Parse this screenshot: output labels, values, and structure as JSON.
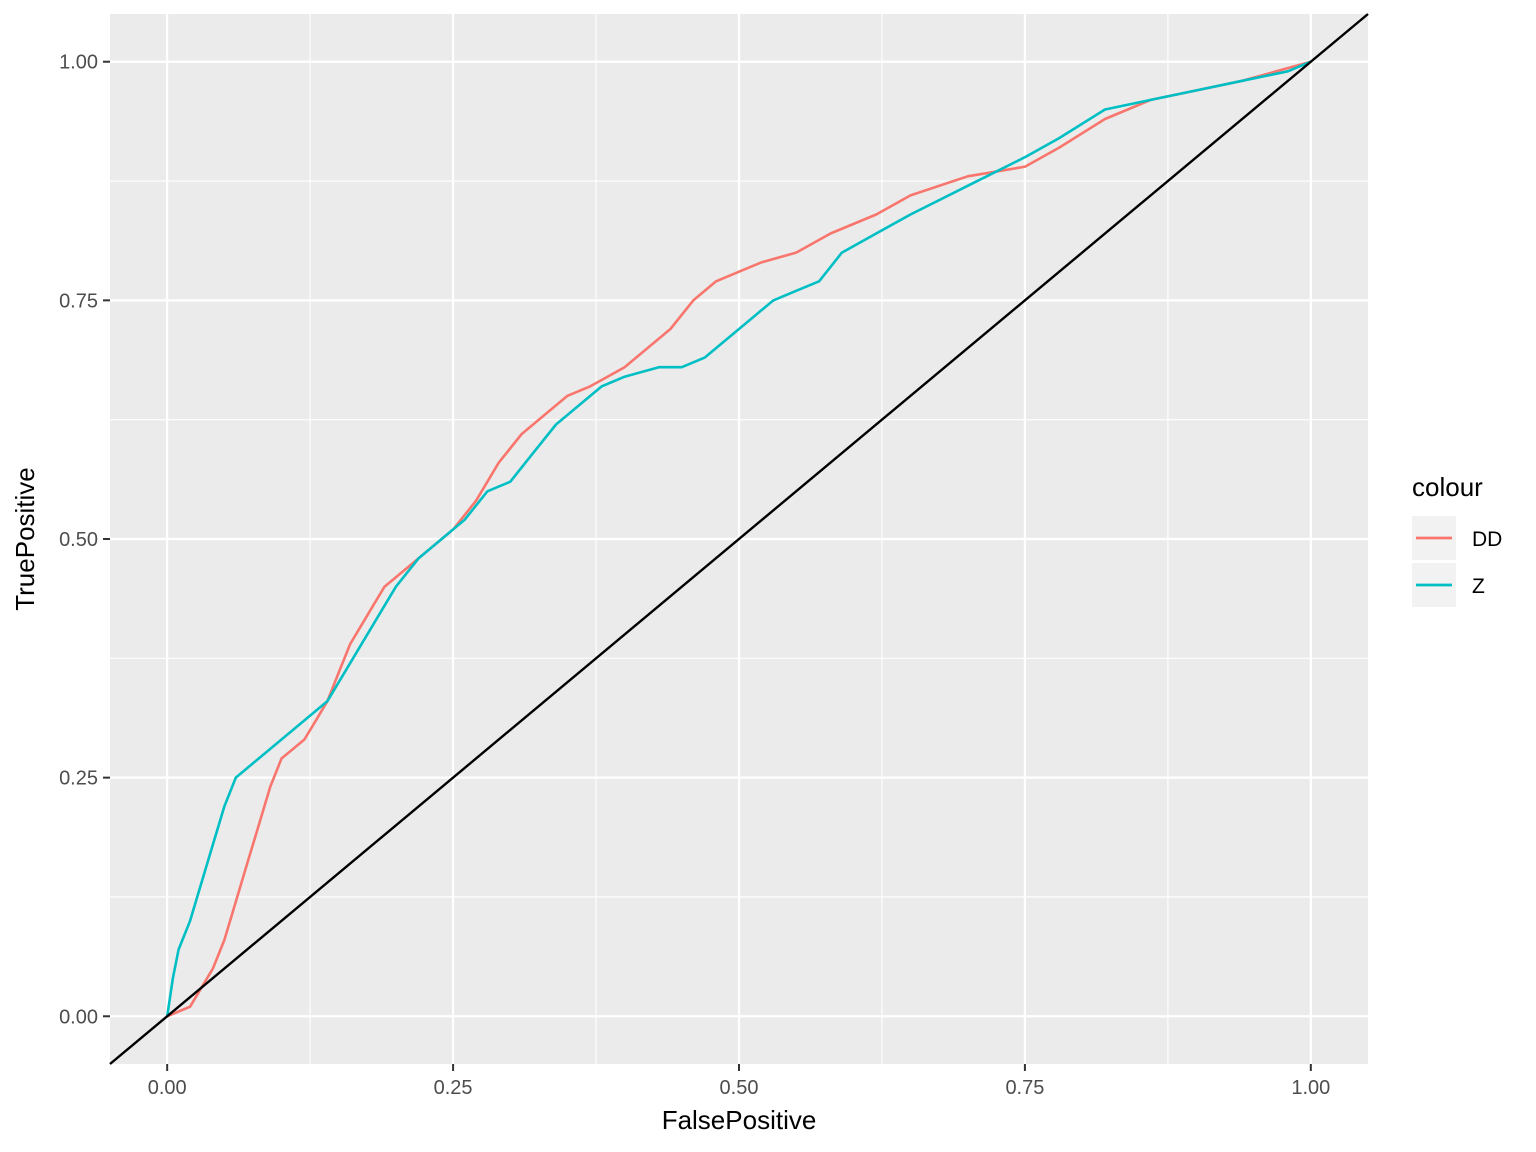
{
  "chart_data": {
    "type": "line",
    "title": "",
    "xlabel": "FalsePositive",
    "ylabel": "TruePositive",
    "xlim": [
      -0.05,
      1.05
    ],
    "ylim": [
      -0.05,
      1.05
    ],
    "x_ticks": [
      "0.00",
      "0.25",
      "0.50",
      "0.75",
      "1.00"
    ],
    "y_ticks": [
      "0.00",
      "0.25",
      "0.50",
      "0.75",
      "1.00"
    ],
    "grid": true,
    "panel_background": "#ebebeb",
    "legend": {
      "title": "colour",
      "position": "right",
      "entries": [
        "DD",
        "Z"
      ]
    },
    "series": [
      {
        "name": "DD",
        "color": "#f8766d",
        "x": [
          0.0,
          0.01,
          0.02,
          0.03,
          0.04,
          0.05,
          0.06,
          0.07,
          0.08,
          0.09,
          0.1,
          0.11,
          0.12,
          0.13,
          0.14,
          0.15,
          0.16,
          0.17,
          0.18,
          0.19,
          0.2,
          0.22,
          0.24,
          0.25,
          0.27,
          0.29,
          0.31,
          0.33,
          0.35,
          0.37,
          0.4,
          0.42,
          0.44,
          0.46,
          0.48,
          0.5,
          0.52,
          0.55,
          0.58,
          0.62,
          0.65,
          0.7,
          0.75,
          0.78,
          0.82,
          0.86,
          0.9,
          0.94,
          0.97,
          1.0
        ],
        "y": [
          0.0,
          0.005,
          0.01,
          0.03,
          0.05,
          0.08,
          0.12,
          0.16,
          0.2,
          0.24,
          0.27,
          0.28,
          0.29,
          0.31,
          0.33,
          0.36,
          0.39,
          0.41,
          0.43,
          0.45,
          0.46,
          0.48,
          0.5,
          0.51,
          0.54,
          0.58,
          0.61,
          0.63,
          0.65,
          0.66,
          0.68,
          0.7,
          0.72,
          0.75,
          0.77,
          0.78,
          0.79,
          0.8,
          0.82,
          0.84,
          0.86,
          0.88,
          0.89,
          0.91,
          0.94,
          0.96,
          0.97,
          0.98,
          0.99,
          1.0
        ]
      },
      {
        "name": "Z",
        "color": "#00bfc4",
        "x": [
          0.0,
          0.005,
          0.01,
          0.02,
          0.03,
          0.04,
          0.05,
          0.06,
          0.07,
          0.08,
          0.1,
          0.12,
          0.14,
          0.16,
          0.18,
          0.2,
          0.22,
          0.24,
          0.26,
          0.28,
          0.3,
          0.32,
          0.34,
          0.36,
          0.38,
          0.4,
          0.43,
          0.45,
          0.47,
          0.49,
          0.51,
          0.53,
          0.55,
          0.57,
          0.59,
          0.62,
          0.65,
          0.7,
          0.75,
          0.78,
          0.82,
          0.86,
          0.9,
          0.94,
          0.98,
          1.0
        ],
        "y": [
          0.0,
          0.04,
          0.07,
          0.1,
          0.14,
          0.18,
          0.22,
          0.25,
          0.26,
          0.27,
          0.29,
          0.31,
          0.33,
          0.37,
          0.41,
          0.45,
          0.48,
          0.5,
          0.52,
          0.55,
          0.56,
          0.59,
          0.62,
          0.64,
          0.66,
          0.67,
          0.68,
          0.68,
          0.69,
          0.71,
          0.73,
          0.75,
          0.76,
          0.77,
          0.8,
          0.82,
          0.84,
          0.87,
          0.9,
          0.92,
          0.95,
          0.96,
          0.97,
          0.98,
          0.99,
          1.0
        ]
      },
      {
        "name": "",
        "color": "#000000",
        "x": [
          -0.05,
          1.05
        ],
        "y": [
          -0.05,
          1.05
        ]
      }
    ]
  }
}
